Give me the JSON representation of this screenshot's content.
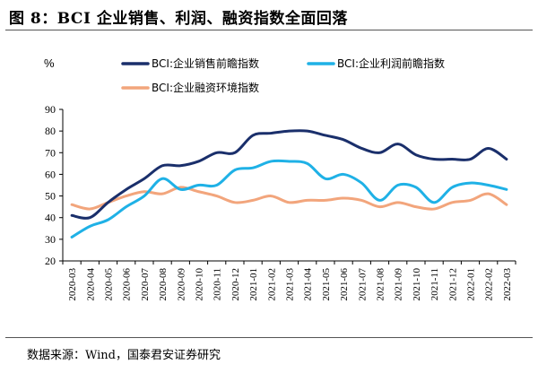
{
  "figure": {
    "title": "图 8：BCI 企业销售、利润、融资指数全面回落",
    "source": "数据来源：Wind，国泰君安证券研究"
  },
  "chart_data": {
    "type": "line",
    "title": "",
    "ylabel": "%",
    "xlabel": "",
    "ylim": [
      20,
      90
    ],
    "yticks": [
      20,
      30,
      40,
      50,
      60,
      70,
      80,
      90
    ],
    "grid": false,
    "legend_position": "top",
    "x": [
      "2020-03",
      "2020-04",
      "2020-05",
      "2020-06",
      "2020-07",
      "2020-08",
      "2020-09",
      "2020-10",
      "2020-11",
      "2020-12",
      "2021-01",
      "2021-02",
      "2021-03",
      "2021-04",
      "2021-05",
      "2021-06",
      "2021-07",
      "2021-08",
      "2021-09",
      "2021-10",
      "2021-11",
      "2021-12",
      "2022-01",
      "2022-02",
      "2022-03"
    ],
    "series": [
      {
        "name": "BCI:企业销售前瞻指数",
        "color": "#1a2f6b",
        "values": [
          41,
          40,
          47,
          53,
          58,
          64,
          64,
          66,
          70,
          70,
          78,
          79,
          80,
          80,
          78,
          76,
          72,
          70,
          74,
          69,
          67,
          67,
          67,
          72,
          67
        ]
      },
      {
        "name": "BCI:企业利润前瞻指数",
        "color": "#1fb1e6",
        "values": [
          31,
          36,
          39,
          45,
          50,
          58,
          53,
          55,
          55,
          62,
          63,
          66,
          66,
          65,
          58,
          60,
          56,
          48,
          55,
          54,
          47,
          54,
          56,
          55,
          53
        ]
      },
      {
        "name": "BCI:企业融资环境指数",
        "color": "#f2a57c",
        "values": [
          46,
          44,
          47,
          50,
          52,
          51,
          54,
          52,
          50,
          47,
          48,
          50,
          47,
          48,
          48,
          49,
          48,
          45,
          47,
          45,
          44,
          47,
          48,
          51,
          46
        ]
      }
    ]
  }
}
